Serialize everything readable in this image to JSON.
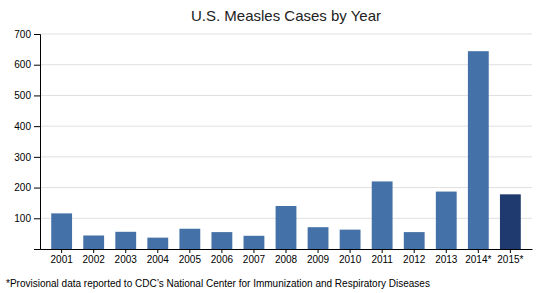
{
  "chart_data": {
    "type": "bar",
    "title": "U.S. Measles Cases by Year",
    "categories": [
      "2001",
      "2002",
      "2003",
      "2004",
      "2005",
      "2006",
      "2007",
      "2008",
      "2009",
      "2010",
      "2011",
      "2012",
      "2013",
      "2014*",
      "2015*"
    ],
    "values": [
      116,
      44,
      56,
      37,
      66,
      55,
      43,
      140,
      71,
      63,
      220,
      55,
      187,
      644,
      178
    ],
    "colors": [
      "#4472a8",
      "#4472a8",
      "#4472a8",
      "#4472a8",
      "#4472a8",
      "#4472a8",
      "#4472a8",
      "#4472a8",
      "#4472a8",
      "#4472a8",
      "#4472a8",
      "#4472a8",
      "#4472a8",
      "#4472a8",
      "#1f3a6e"
    ],
    "ylim": [
      0,
      700
    ],
    "yticks": [
      100,
      200,
      300,
      400,
      500,
      600,
      700
    ],
    "grid": true,
    "annotations": [
      "*Provisional data reported to CDC’s National Center for Immunization and Respiratory Diseases"
    ]
  }
}
